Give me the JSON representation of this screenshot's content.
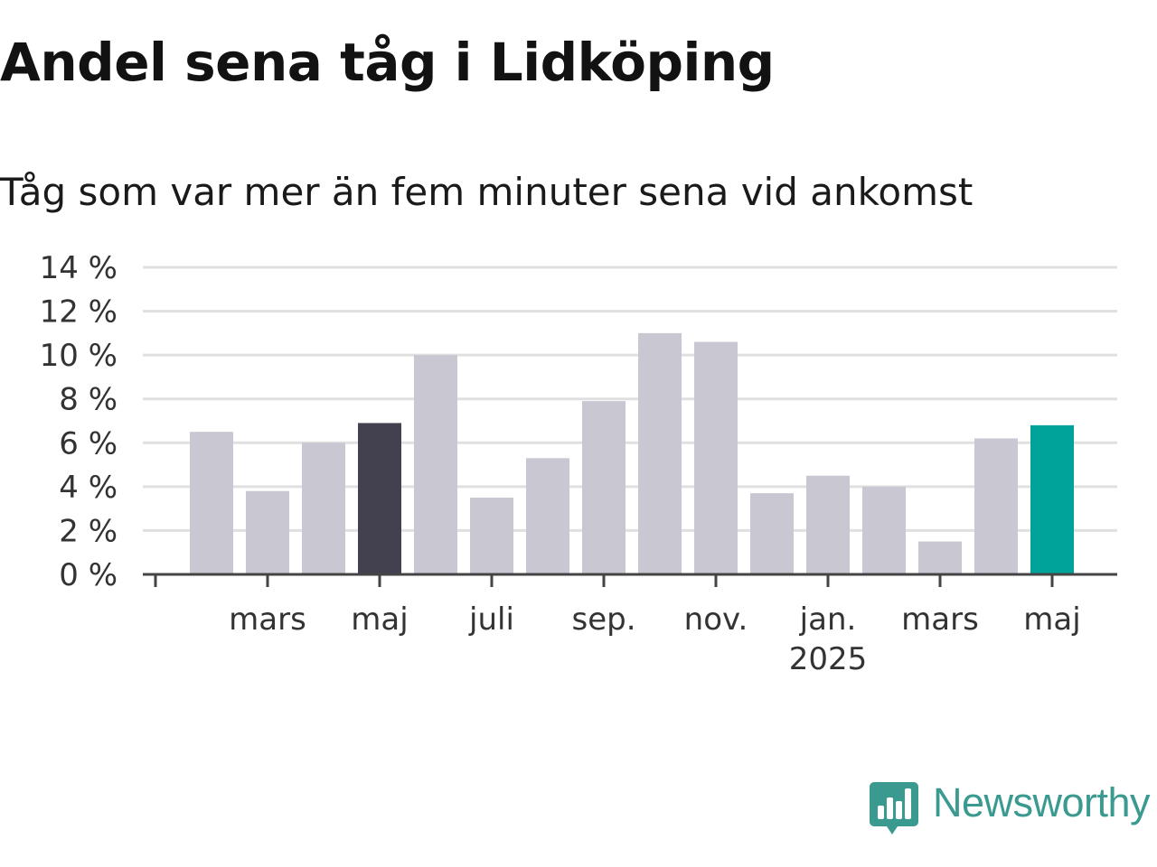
{
  "chart_data": {
    "type": "bar",
    "title": "Andel sena tåg i Lidköping",
    "subtitle": "Tåg som var mer än fem minuter sena vid ankomst",
    "ylim": [
      0,
      14
    ],
    "yticks": [
      0,
      2,
      4,
      6,
      8,
      10,
      12,
      14
    ],
    "ytick_labels": [
      "0 %",
      "2 %",
      "4 %",
      "6 %",
      "8 %",
      "10 %",
      "12 %",
      "14 %"
    ],
    "grid": true,
    "xtick_labels": [
      {
        "month_index": 2,
        "label": "mars"
      },
      {
        "month_index": 4,
        "label": "maj"
      },
      {
        "month_index": 6,
        "label": "juli"
      },
      {
        "month_index": 8,
        "label": "sep."
      },
      {
        "month_index": 10,
        "label": "nov."
      },
      {
        "month_index": 12,
        "label": "jan.",
        "year": "2025"
      },
      {
        "month_index": 14,
        "label": "mars"
      },
      {
        "month_index": 16,
        "label": "maj"
      }
    ],
    "values": [
      6.5,
      3.8,
      6.0,
      6.9,
      10.0,
      3.5,
      5.3,
      7.9,
      11.0,
      10.6,
      3.7,
      4.5,
      4.0,
      1.5,
      6.2,
      6.8
    ],
    "colors": {
      "default": "#c8c7d2",
      "highlight_previous_year": "#43404f",
      "highlight_current": "#00a39a",
      "grid": "#e0e0e0",
      "axis": "#444444"
    },
    "highlight_previous_year_index": 3,
    "highlight_current_index": 15
  },
  "brand": {
    "name": "Newsworthy",
    "icon": "newsworthy-logo-icon",
    "color": "#3a9a90"
  }
}
